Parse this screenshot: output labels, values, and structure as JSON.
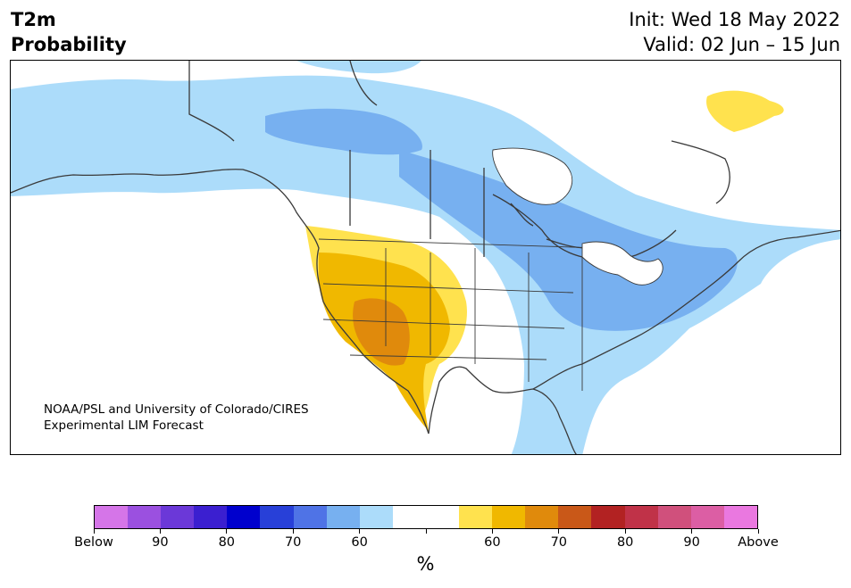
{
  "title": {
    "left_line1": "T2m",
    "left_line2": "Probability",
    "right_line1": "Init: Wed 18 May 2022",
    "right_line2": "Valid: 02 Jun – 15 Jun"
  },
  "credit": {
    "line1": "NOAA/PSL and University of Colorado/CIRES",
    "line2": "Experimental LIM Forecast"
  },
  "colorbar": {
    "colors": [
      "#d575e8",
      "#9b50e0",
      "#6b38d8",
      "#3b1fd0",
      "#0000cd",
      "#2840d8",
      "#4f73e6",
      "#77b0f0",
      "#acdcfa",
      "#ffffff",
      "#ffffff",
      "#ffe24e",
      "#f0b800",
      "#e08a0c",
      "#c95818",
      "#b22222",
      "#c03248",
      "#d0507c",
      "#dc5ea4",
      "#ea78e0"
    ],
    "labels": [
      "Below",
      "90",
      "80",
      "70",
      "60",
      "",
      "60",
      "70",
      "80",
      "90",
      "Above"
    ],
    "unit": "%"
  },
  "map_colors": {
    "light_blue": "#acdcfa",
    "mid_blue": "#77b0f0",
    "yellow": "#ffe24e",
    "gold": "#f0b800",
    "orange": "#e08a0c",
    "coast": "#3a3a3a"
  }
}
